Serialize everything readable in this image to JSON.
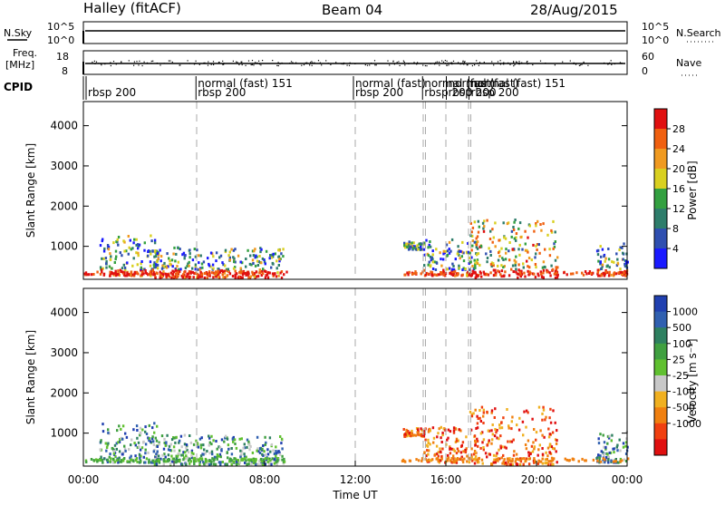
{
  "header": {
    "title": "Halley (fitACF)",
    "beam": "Beam 04",
    "date": "28/Aug/2015"
  },
  "top_panels": {
    "nsky": {
      "label": "N.Sky",
      "ticks_left": [
        "10^5",
        "10^0"
      ],
      "ticks_right": [
        "10^5",
        "10^0"
      ],
      "right_label": "N.Search"
    },
    "freq": {
      "label_line1": "Freq.",
      "label_line2": "[MHz]",
      "ticks_left": [
        "18",
        "8"
      ],
      "ticks_right": [
        "60",
        "0"
      ],
      "right_label": "Nave"
    },
    "cpid": {
      "label": "CPID",
      "entries": [
        {
          "t": 0.2,
          "line1": "",
          "line2": "rbsp 200"
        },
        {
          "t": 5.05,
          "line1": "normal (fast) 151",
          "line2": "rbsp 200"
        },
        {
          "t": 12.0,
          "line1": "normal (fast)",
          "line2": "rbsp 200"
        },
        {
          "t": 15.05,
          "line1": "normal (fast)",
          "line2": "rbsp 200"
        },
        {
          "t": 16.1,
          "line1": "normal (fast)",
          "line2": "rbsp 200"
        },
        {
          "t": 17.1,
          "line1": "normal (fast) 151",
          "line2": "rbsp 200"
        }
      ]
    }
  },
  "chart_data": [
    {
      "type": "heatmap",
      "name": "Power",
      "ylabel": "Slant Range [km]",
      "xlabel": "",
      "xlim": [
        0,
        24
      ],
      "ylim": [
        180,
        4600
      ],
      "yticks": [
        1000,
        2000,
        3000,
        4000
      ],
      "colorbar": {
        "label": "Power [dB]",
        "ticks": [
          "4",
          "8",
          "12",
          "16",
          "20",
          "24",
          "28"
        ],
        "colors": [
          "#1a1aff",
          "#2f4fb0",
          "#2e7d6b",
          "#33a040",
          "#d9d020",
          "#f09a20",
          "#f06010",
          "#e01010"
        ]
      },
      "cpid_boundaries_hours": [
        5.0,
        12.0,
        15.0,
        15.1,
        16.0,
        17.0,
        17.1
      ],
      "echo_regions": [
        {
          "t_start": 0.7,
          "t_end": 3.2,
          "r_min": 300,
          "r_max": 1300,
          "level": "mixed"
        },
        {
          "t_start": 3.0,
          "t_end": 8.8,
          "r_min": 250,
          "r_max": 1000,
          "level": "mixed"
        },
        {
          "t_start": 14.1,
          "t_end": 15.0,
          "r_min": 950,
          "r_max": 1150,
          "level": "mixed"
        },
        {
          "t_start": 15.0,
          "t_end": 17.4,
          "r_min": 300,
          "r_max": 1200,
          "level": "mixed"
        },
        {
          "t_start": 17.0,
          "t_end": 20.9,
          "r_min": 250,
          "r_max": 1700,
          "level": "strong"
        },
        {
          "t_start": 22.6,
          "t_end": 24.0,
          "r_min": 300,
          "r_max": 1100,
          "level": "mixed"
        }
      ]
    },
    {
      "type": "heatmap",
      "name": "Velocity",
      "ylabel": "Slant Range [km]",
      "xlabel": "Time UT",
      "xlim": [
        0,
        24
      ],
      "ylim": [
        180,
        4600
      ],
      "xticks": [
        "00:00",
        "04:00",
        "08:00",
        "12:00",
        "16:00",
        "20:00",
        "00:00"
      ],
      "yticks": [
        1000,
        2000,
        3000,
        4000
      ],
      "colorbar": {
        "label": "Velocity [m s⁻¹]",
        "ticks": [
          "1000",
          "500",
          "100",
          "25",
          "-25",
          "-100",
          "-500",
          "-1000"
        ],
        "colors": [
          "#2040b0",
          "#3060b0",
          "#2e8060",
          "#40a040",
          "#60c030",
          "#c8c8c8",
          "#f0b020",
          "#f08010",
          "#f04010",
          "#e01010"
        ]
      },
      "cpid_boundaries_hours": [
        5.0,
        12.0,
        15.0,
        15.1,
        16.0,
        17.0,
        17.1
      ],
      "echo_regions": [
        {
          "t_start": 0.7,
          "t_end": 3.2,
          "r_min": 300,
          "r_max": 1300,
          "level": "mixed"
        },
        {
          "t_start": 3.0,
          "t_end": 8.8,
          "r_min": 250,
          "r_max": 1000,
          "level": "mixed"
        },
        {
          "t_start": 14.1,
          "t_end": 15.0,
          "r_min": 950,
          "r_max": 1150,
          "level": "negative"
        },
        {
          "t_start": 15.0,
          "t_end": 17.4,
          "r_min": 300,
          "r_max": 1200,
          "level": "negative"
        },
        {
          "t_start": 17.0,
          "t_end": 20.9,
          "r_min": 250,
          "r_max": 1700,
          "level": "negative"
        },
        {
          "t_start": 22.6,
          "t_end": 24.0,
          "r_min": 300,
          "r_max": 1100,
          "level": "mixed"
        }
      ]
    }
  ]
}
